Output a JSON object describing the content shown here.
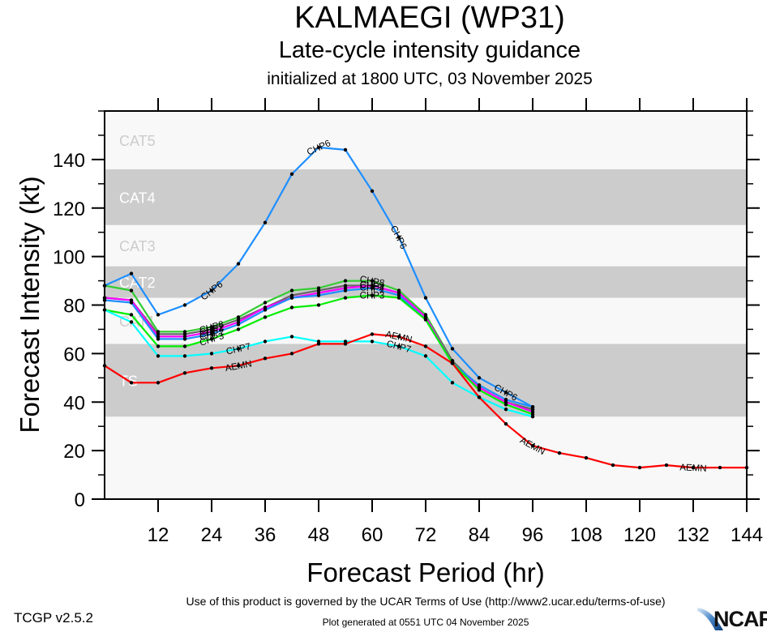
{
  "header": {
    "title": "KALMAEGI (WP31)",
    "subtitle": "Late-cycle intensity guidance",
    "init": "initialized at 1800 UTC, 03 November 2025"
  },
  "footer": {
    "terms": "Use of this product is governed by the UCAR Terms of Use (http://www2.ucar.edu/terms-of-use)",
    "version": "TCGP v2.5.2",
    "generated": "Plot generated at 0551 UTC   04 November 2025",
    "logo": "NCAR"
  },
  "chart_data": {
    "type": "line",
    "title": "KALMAEGI (WP31) Late-cycle intensity guidance",
    "xlabel": "Forecast Period (hr)",
    "ylabel": "Forecast Intensity (kt)",
    "xlim": [
      0,
      144
    ],
    "ylim": [
      0,
      160
    ],
    "xticks": [
      12,
      24,
      36,
      48,
      60,
      72,
      84,
      96,
      108,
      120,
      132,
      144
    ],
    "yticks": [
      0,
      20,
      40,
      60,
      80,
      100,
      120,
      140
    ],
    "grid": false,
    "legend": "inline labels on lines",
    "categories": [
      {
        "label": "TS",
        "min": 34,
        "max": 64,
        "shade": "#cccccc",
        "text_color": "#ffffff"
      },
      {
        "label": "CAT1",
        "min": 64,
        "max": 83,
        "shade": "#f8f8f8",
        "text_color": "#cccccc"
      },
      {
        "label": "CAT2",
        "min": 83,
        "max": 96,
        "shade": "#cccccc",
        "text_color": "#ffffff"
      },
      {
        "label": "CAT3",
        "min": 96,
        "max": 113,
        "shade": "#f8f8f8",
        "text_color": "#cccccc"
      },
      {
        "label": "CAT4",
        "min": 113,
        "max": 136,
        "shade": "#cccccc",
        "text_color": "#ffffff"
      },
      {
        "label": "CAT5",
        "min": 136,
        "max": 160,
        "shade": "#f8f8f8",
        "text_color": "#cccccc"
      }
    ],
    "below_ts_shade": "#f8f8f8",
    "series": [
      {
        "name": "CHP8",
        "color": "#33cc33",
        "label_at": [
          24,
          60
        ],
        "x": [
          0,
          6,
          12,
          18,
          24,
          30,
          36,
          42,
          48,
          54,
          60,
          66,
          72,
          78,
          84,
          90,
          96
        ],
        "y": [
          88,
          86,
          69,
          69,
          71,
          75,
          81,
          86,
          87,
          90,
          90,
          86,
          76,
          57,
          46,
          40,
          37
        ]
      },
      {
        "name": "CHP2",
        "color": "#666666",
        "label_at": [
          24,
          60
        ],
        "x": [
          0,
          6,
          12,
          18,
          24,
          30,
          36,
          42,
          48,
          54,
          60,
          66,
          72,
          78,
          84,
          90,
          96
        ],
        "y": [
          83,
          82,
          68,
          68,
          70,
          74,
          79,
          84,
          86,
          88,
          88,
          85,
          75,
          57,
          46,
          40,
          37
        ]
      },
      {
        "name": "CHP4",
        "color": "#ff00ff",
        "label_at": [
          24,
          60
        ],
        "x": [
          0,
          6,
          12,
          18,
          24,
          30,
          36,
          42,
          48,
          54,
          60,
          66,
          72,
          78,
          84,
          90,
          96
        ],
        "y": [
          83,
          82,
          67,
          67,
          69,
          73,
          79,
          83,
          85,
          87,
          88,
          85,
          75,
          56,
          46,
          40,
          36
        ]
      },
      {
        "name": "CHP1",
        "color": "#1e90ff",
        "label_at": [
          24,
          60
        ],
        "x": [
          0,
          6,
          12,
          18,
          24,
          30,
          36,
          42,
          48,
          54,
          60,
          66,
          72,
          78,
          84,
          90,
          96
        ],
        "y": [
          82,
          81,
          66,
          66,
          68,
          72,
          78,
          83,
          84,
          86,
          87,
          84,
          74,
          56,
          47,
          41,
          38
        ]
      },
      {
        "name": "CHP3",
        "color": "#00ee00",
        "label_at": [
          24,
          60
        ],
        "x": [
          0,
          6,
          12,
          18,
          24,
          30,
          36,
          42,
          48,
          54,
          60,
          66,
          72,
          78,
          84,
          90,
          96
        ],
        "y": [
          78,
          76,
          63,
          63,
          66,
          70,
          75,
          79,
          80,
          83,
          84,
          83,
          74,
          56,
          45,
          39,
          35
        ]
      },
      {
        "name": "CHP6",
        "color": "#1e8fff",
        "label_at": [
          24,
          48,
          66,
          90
        ],
        "x": [
          0,
          6,
          12,
          18,
          24,
          30,
          36,
          42,
          48,
          54,
          60,
          66,
          72,
          78,
          84,
          90,
          96
        ],
        "y": [
          88,
          93,
          76,
          80,
          86,
          97,
          114,
          134,
          145,
          144,
          127,
          108,
          83,
          62,
          50,
          44,
          38
        ]
      },
      {
        "name": "CHP7",
        "color": "#00ffff",
        "label_at": [
          30,
          66
        ],
        "x": [
          0,
          6,
          12,
          18,
          24,
          30,
          36,
          42,
          48,
          54,
          60,
          66,
          72,
          78,
          84,
          90,
          96
        ],
        "y": [
          78,
          73,
          59,
          59,
          60,
          62,
          65,
          67,
          65,
          65,
          65,
          63,
          59,
          48,
          42,
          37,
          34
        ]
      },
      {
        "name": "AEMN",
        "color": "#ff0000",
        "label_at": [
          30,
          66,
          96,
          132
        ],
        "x": [
          0,
          6,
          12,
          18,
          24,
          30,
          36,
          42,
          48,
          54,
          60,
          66,
          72,
          78,
          84,
          90,
          96,
          102,
          108,
          114,
          120,
          126,
          132,
          138,
          144
        ],
        "y": [
          55,
          48,
          48,
          52,
          54,
          55,
          58,
          60,
          64,
          64,
          68,
          67,
          63,
          56,
          42,
          31,
          22,
          19,
          17,
          14,
          13,
          14,
          13,
          13,
          13
        ]
      }
    ]
  }
}
